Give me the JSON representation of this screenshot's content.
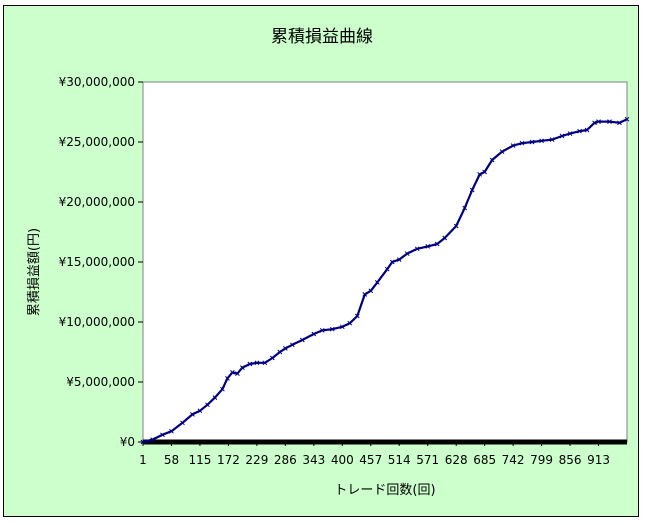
{
  "chart_data": {
    "type": "line",
    "title": "累積損益曲線",
    "xlabel": "トレード回数(回)",
    "ylabel": "累積損益額(円)",
    "x_tick_labels": [
      "1",
      "58",
      "115",
      "172",
      "229",
      "286",
      "343",
      "400",
      "457",
      "514",
      "571",
      "628",
      "685",
      "742",
      "799",
      "856",
      "913"
    ],
    "y_tick_labels": [
      "¥0",
      "¥5,000,000",
      "¥10,000,000",
      "¥15,000,000",
      "¥20,000,000",
      "¥25,000,000",
      "¥30,000,000"
    ],
    "xlim": [
      1,
      970
    ],
    "ylim": [
      0,
      30000000
    ],
    "grid": false,
    "legend": "none",
    "series": [
      {
        "color": "#000080",
        "marker": "x",
        "points": [
          [
            1,
            0
          ],
          [
            20,
            200000
          ],
          [
            40,
            600000
          ],
          [
            58,
            900000
          ],
          [
            80,
            1600000
          ],
          [
            100,
            2300000
          ],
          [
            115,
            2600000
          ],
          [
            130,
            3100000
          ],
          [
            145,
            3700000
          ],
          [
            160,
            4400000
          ],
          [
            170,
            5300000
          ],
          [
            180,
            5800000
          ],
          [
            190,
            5700000
          ],
          [
            200,
            6200000
          ],
          [
            215,
            6500000
          ],
          [
            229,
            6600000
          ],
          [
            245,
            6600000
          ],
          [
            260,
            7000000
          ],
          [
            275,
            7500000
          ],
          [
            286,
            7800000
          ],
          [
            300,
            8100000
          ],
          [
            320,
            8500000
          ],
          [
            343,
            9000000
          ],
          [
            360,
            9300000
          ],
          [
            380,
            9400000
          ],
          [
            400,
            9600000
          ],
          [
            415,
            9900000
          ],
          [
            430,
            10500000
          ],
          [
            445,
            12300000
          ],
          [
            457,
            12600000
          ],
          [
            470,
            13300000
          ],
          [
            490,
            14400000
          ],
          [
            500,
            15000000
          ],
          [
            514,
            15200000
          ],
          [
            530,
            15700000
          ],
          [
            550,
            16100000
          ],
          [
            571,
            16300000
          ],
          [
            590,
            16500000
          ],
          [
            605,
            17000000
          ],
          [
            628,
            18000000
          ],
          [
            645,
            19500000
          ],
          [
            660,
            21000000
          ],
          [
            675,
            22300000
          ],
          [
            685,
            22500000
          ],
          [
            700,
            23500000
          ],
          [
            720,
            24200000
          ],
          [
            742,
            24700000
          ],
          [
            760,
            24900000
          ],
          [
            780,
            25000000
          ],
          [
            799,
            25100000
          ],
          [
            820,
            25200000
          ],
          [
            840,
            25500000
          ],
          [
            856,
            25700000
          ],
          [
            875,
            25900000
          ],
          [
            890,
            26000000
          ],
          [
            905,
            26600000
          ],
          [
            913,
            26700000
          ],
          [
            935,
            26700000
          ],
          [
            955,
            26600000
          ],
          [
            970,
            26900000
          ]
        ]
      }
    ]
  },
  "colors": {
    "frame_background": "#ccffcc",
    "plot_background": "#ffffff",
    "line_color": "#000080",
    "baseline_color": "#000000"
  }
}
